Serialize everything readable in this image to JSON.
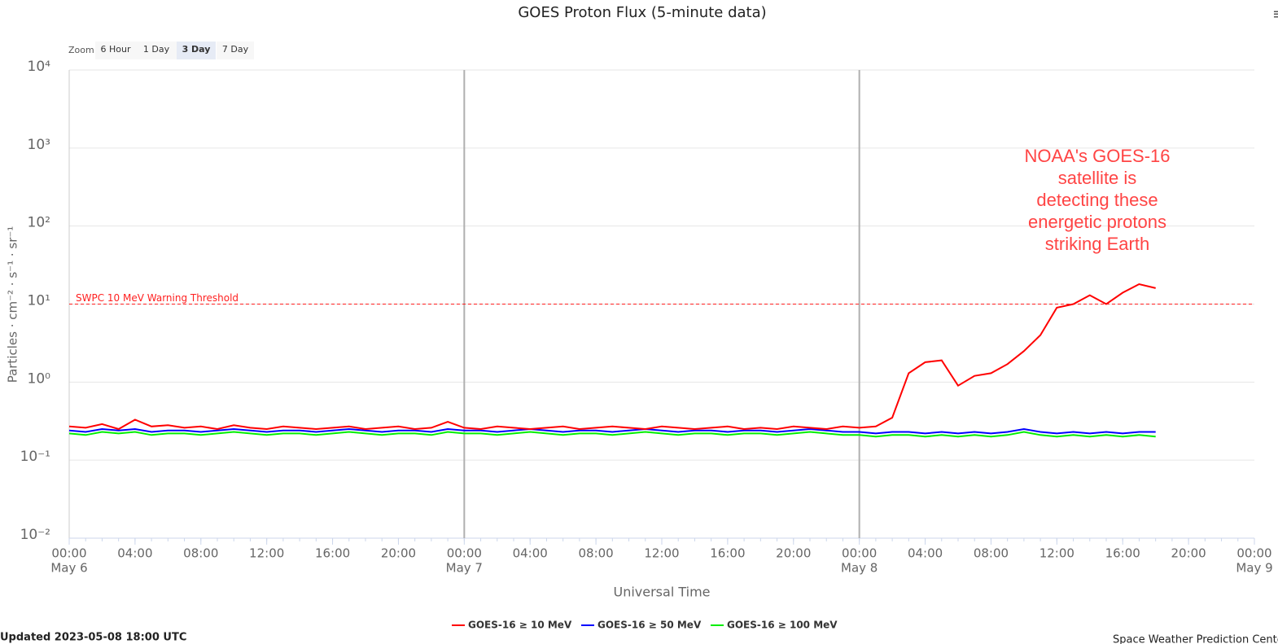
{
  "ui": {
    "zoom_label": "Zoom",
    "zoom_buttons": [
      "6 Hour",
      "1 Day",
      "3 Day",
      "7 Day"
    ],
    "zoom_selected": 2,
    "menu_icon": "≡",
    "updated": "Updated 2023-05-08 18:00 UTC",
    "credit": "Space Weather Prediction Center"
  },
  "chart_data": {
    "type": "line",
    "title": "GOES Proton Flux (5-minute data)",
    "x_label": "Universal Time",
    "y_label": "Particles · cm⁻² · s⁻¹ · sr⁻¹",
    "log_y": true,
    "grid": true,
    "legend": "bottom",
    "xlim": [
      "May 6 00:00",
      "May 9 00:00"
    ],
    "xticks": [
      {
        "value": "May 6 00:00",
        "label": "00:00",
        "sublabel": "May 6"
      },
      {
        "value": "May 6 04:00",
        "label": "04:00"
      },
      {
        "value": "May 6 08:00",
        "label": "08:00"
      },
      {
        "value": "May 6 12:00",
        "label": "12:00"
      },
      {
        "value": "May 6 16:00",
        "label": "16:00"
      },
      {
        "value": "May 6 20:00",
        "label": "20:00"
      },
      {
        "value": "May 7 00:00",
        "label": "00:00",
        "sublabel": "May 7"
      },
      {
        "value": "May 7 04:00",
        "label": "04:00"
      },
      {
        "value": "May 7 08:00",
        "label": "08:00"
      },
      {
        "value": "May 7 12:00",
        "label": "12:00"
      },
      {
        "value": "May 7 16:00",
        "label": "16:00"
      },
      {
        "value": "May 7 20:00",
        "label": "20:00"
      },
      {
        "value": "May 8 00:00",
        "label": "00:00",
        "sublabel": "May 8"
      },
      {
        "value": "May 8 04:00",
        "label": "04:00"
      },
      {
        "value": "May 8 08:00",
        "label": "08:00"
      },
      {
        "value": "May 8 12:00",
        "label": "12:00"
      },
      {
        "value": "May 8 16:00",
        "label": "16:00"
      },
      {
        "value": "May 8 20:00",
        "label": "20:00"
      },
      {
        "value": "May 9 00:00",
        "label": "00:00",
        "sublabel": "May 9"
      }
    ],
    "ylim": [
      0.01,
      10000
    ],
    "yticks": [
      {
        "value": 0.01,
        "label": "10⁻²"
      },
      {
        "value": 0.1,
        "label": "10⁻¹"
      },
      {
        "value": 1,
        "label": "10⁰"
      },
      {
        "value": 10,
        "label": "10¹"
      },
      {
        "value": 100,
        "label": "10²"
      },
      {
        "value": 1000,
        "label": "10³"
      },
      {
        "value": 10000,
        "label": "10⁴"
      }
    ],
    "threshold": {
      "value": 10,
      "label": "SWPC 10 MeV Warning Threshold",
      "color": "#ff2020"
    },
    "annotation": {
      "lines": [
        "NOAA's GOES-16",
        "satellite is",
        "detecting these",
        "energetic protons",
        "striking Earth"
      ],
      "color": "#ff4444"
    },
    "x": [
      "May 6 00:00",
      "May 6 01:00",
      "May 6 02:00",
      "May 6 03:00",
      "May 6 04:00",
      "May 6 05:00",
      "May 6 06:00",
      "May 6 07:00",
      "May 6 08:00",
      "May 6 09:00",
      "May 6 10:00",
      "May 6 11:00",
      "May 6 12:00",
      "May 6 13:00",
      "May 6 14:00",
      "May 6 15:00",
      "May 6 16:00",
      "May 6 17:00",
      "May 6 18:00",
      "May 6 19:00",
      "May 6 20:00",
      "May 6 21:00",
      "May 6 22:00",
      "May 6 23:00",
      "May 7 00:00",
      "May 7 01:00",
      "May 7 02:00",
      "May 7 03:00",
      "May 7 04:00",
      "May 7 05:00",
      "May 7 06:00",
      "May 7 07:00",
      "May 7 08:00",
      "May 7 09:00",
      "May 7 10:00",
      "May 7 11:00",
      "May 7 12:00",
      "May 7 13:00",
      "May 7 14:00",
      "May 7 15:00",
      "May 7 16:00",
      "May 7 17:00",
      "May 7 18:00",
      "May 7 19:00",
      "May 7 20:00",
      "May 7 21:00",
      "May 7 22:00",
      "May 7 23:00",
      "May 8 00:00",
      "May 8 01:00",
      "May 8 02:00",
      "May 8 03:00",
      "May 8 04:00",
      "May 8 05:00",
      "May 8 06:00",
      "May 8 07:00",
      "May 8 08:00",
      "May 8 09:00",
      "May 8 10:00",
      "May 8 11:00",
      "May 8 12:00",
      "May 8 13:00",
      "May 8 14:00",
      "May 8 15:00",
      "May 8 16:00",
      "May 8 17:00",
      "May 8 18:00"
    ],
    "series": [
      {
        "name": "GOES-16 ≥ 10 MeV",
        "color": "#ff0000",
        "values": [
          0.27,
          0.26,
          0.29,
          0.25,
          0.33,
          0.27,
          0.28,
          0.26,
          0.27,
          0.25,
          0.28,
          0.26,
          0.25,
          0.27,
          0.26,
          0.25,
          0.26,
          0.27,
          0.25,
          0.26,
          0.27,
          0.25,
          0.26,
          0.31,
          0.26,
          0.25,
          0.27,
          0.26,
          0.25,
          0.26,
          0.27,
          0.25,
          0.26,
          0.27,
          0.26,
          0.25,
          0.27,
          0.26,
          0.25,
          0.26,
          0.27,
          0.25,
          0.26,
          0.25,
          0.27,
          0.26,
          0.25,
          0.27,
          0.26,
          0.27,
          0.35,
          1.3,
          1.8,
          1.9,
          0.9,
          1.2,
          1.3,
          1.7,
          2.5,
          4,
          9,
          10,
          13,
          10,
          14,
          18,
          16
        ]
      },
      {
        "name": "GOES-16 ≥ 50 MeV",
        "color": "#0000ff",
        "values": [
          0.24,
          0.23,
          0.25,
          0.24,
          0.25,
          0.23,
          0.24,
          0.24,
          0.23,
          0.24,
          0.25,
          0.24,
          0.23,
          0.24,
          0.24,
          0.23,
          0.24,
          0.25,
          0.24,
          0.23,
          0.24,
          0.24,
          0.23,
          0.25,
          0.24,
          0.24,
          0.23,
          0.24,
          0.25,
          0.24,
          0.23,
          0.24,
          0.24,
          0.23,
          0.24,
          0.25,
          0.24,
          0.23,
          0.24,
          0.24,
          0.23,
          0.24,
          0.24,
          0.23,
          0.24,
          0.25,
          0.24,
          0.23,
          0.23,
          0.22,
          0.23,
          0.23,
          0.22,
          0.23,
          0.22,
          0.23,
          0.22,
          0.23,
          0.25,
          0.23,
          0.22,
          0.23,
          0.22,
          0.23,
          0.22,
          0.23,
          0.23
        ]
      },
      {
        "name": "GOES-16 ≥ 100 MeV",
        "color": "#00ee00",
        "values": [
          0.22,
          0.21,
          0.23,
          0.22,
          0.23,
          0.21,
          0.22,
          0.22,
          0.21,
          0.22,
          0.23,
          0.22,
          0.21,
          0.22,
          0.22,
          0.21,
          0.22,
          0.23,
          0.22,
          0.21,
          0.22,
          0.22,
          0.21,
          0.23,
          0.22,
          0.22,
          0.21,
          0.22,
          0.23,
          0.22,
          0.21,
          0.22,
          0.22,
          0.21,
          0.22,
          0.23,
          0.22,
          0.21,
          0.22,
          0.22,
          0.21,
          0.22,
          0.22,
          0.21,
          0.22,
          0.23,
          0.22,
          0.21,
          0.21,
          0.2,
          0.21,
          0.21,
          0.2,
          0.21,
          0.2,
          0.21,
          0.2,
          0.21,
          0.23,
          0.21,
          0.2,
          0.21,
          0.2,
          0.21,
          0.2,
          0.21,
          0.2
        ]
      }
    ]
  }
}
